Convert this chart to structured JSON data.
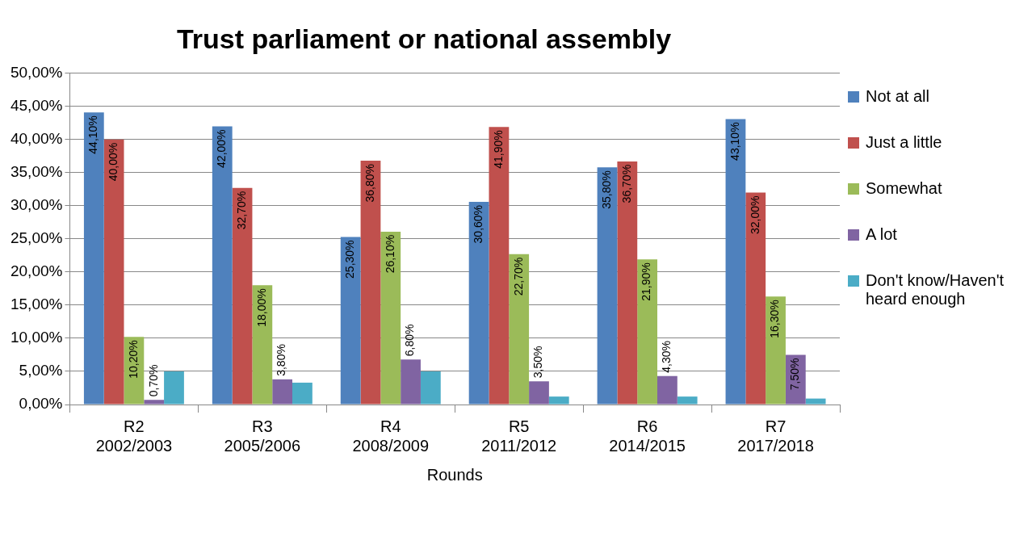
{
  "chart_data": {
    "type": "bar",
    "title": "Trust parliament or national assembly",
    "xlabel": "Rounds",
    "categories": [
      "R2\n2002/2003",
      "R3\n2005/2006",
      "R4\n2008/2009",
      "R5\n2011/2012",
      "R6\n2014/2015",
      "R7\n2017/2018"
    ],
    "series": [
      {
        "name": "Not at all",
        "color": "#4f81bd",
        "values": [
          44.1,
          42.0,
          25.3,
          30.6,
          35.8,
          43.1
        ],
        "value_labels": [
          "44,10%",
          "42,00%",
          "25,30%",
          "30,60%",
          "35,80%",
          "43,10%"
        ]
      },
      {
        "name": "Just a little",
        "color": "#c0504d",
        "values": [
          40.0,
          32.7,
          36.8,
          41.9,
          36.7,
          32.0
        ],
        "value_labels": [
          "40,00%",
          "32,70%",
          "36,80%",
          "41,90%",
          "36,70%",
          "32,00%"
        ]
      },
      {
        "name": "Somewhat",
        "color": "#9bbb59",
        "values": [
          10.2,
          18.0,
          26.1,
          22.7,
          21.9,
          16.3
        ],
        "value_labels": [
          "10,20%",
          "18,00%",
          "26,10%",
          "22,70%",
          "21,90%",
          "16,30%"
        ]
      },
      {
        "name": "A lot",
        "color": "#8064a2",
        "values": [
          0.7,
          3.8,
          6.8,
          3.5,
          4.3,
          7.5
        ],
        "value_labels": [
          "0,70%",
          "3,80%",
          "6,80%",
          "3,50%",
          "4,30%",
          "7,50%"
        ]
      },
      {
        "name": "Don't know/Haven't heard enough",
        "color": "#4bacc6",
        "values": [
          5.0,
          3.3,
          5.0,
          1.2,
          1.2,
          0.9
        ]
      }
    ],
    "ylim": [
      0,
      50
    ],
    "yticks": [
      {
        "value": 0,
        "label": "0,00%"
      },
      {
        "value": 5,
        "label": "5,00%"
      },
      {
        "value": 10,
        "label": "10,00%"
      },
      {
        "value": 15,
        "label": "15,00%"
      },
      {
        "value": 20,
        "label": "20,00%"
      },
      {
        "value": 25,
        "label": "25,00%"
      },
      {
        "value": 30,
        "label": "30,00%"
      },
      {
        "value": 35,
        "label": "35,00%"
      },
      {
        "value": 40,
        "label": "40,00%"
      },
      {
        "value": 45,
        "label": "45,00%"
      },
      {
        "value": 50,
        "label": "50,00%"
      }
    ],
    "grid": "y",
    "legend": "right"
  }
}
